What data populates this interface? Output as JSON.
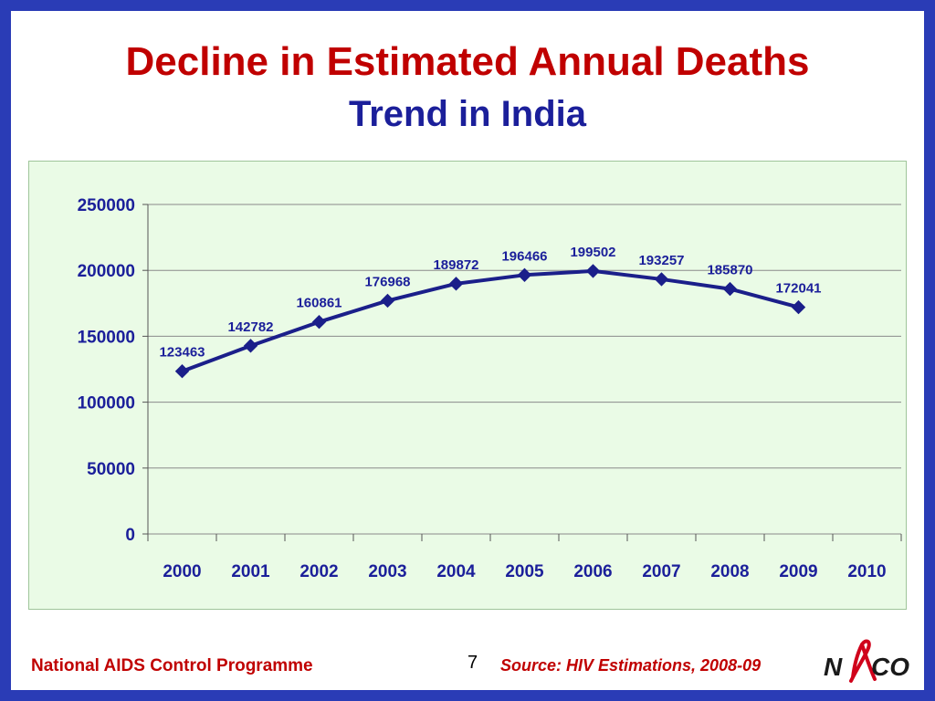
{
  "slide": {
    "page_number": "7"
  },
  "footer": {
    "organization": "National AIDS Control Programme",
    "source": "Source: HIV Estimations, 2008-09"
  },
  "logo": {
    "text": "NACO",
    "ribbon_color": "#d0021b"
  },
  "colors": {
    "background_frame": "#2a3cb6",
    "title": "#c00000",
    "subtitle": "#1b1f9a",
    "series_line": "#1b1f8a",
    "plot_area": "#eafbe6"
  },
  "chart_data": {
    "type": "line",
    "title": "Decline in Estimated Annual Deaths",
    "subtitle": "Trend in India",
    "xlabel": "",
    "ylabel": "",
    "categories": [
      "2000",
      "2001",
      "2002",
      "2003",
      "2004",
      "2005",
      "2006",
      "2007",
      "2008",
      "2009",
      "2010"
    ],
    "values": [
      123463,
      142782,
      160861,
      176968,
      189872,
      196466,
      199502,
      193257,
      185870,
      172041,
      null
    ],
    "ylim": [
      0,
      250000
    ],
    "yticks": [
      0,
      50000,
      100000,
      150000,
      200000,
      250000
    ],
    "grid": true,
    "legend": "none",
    "data_labels": true
  }
}
